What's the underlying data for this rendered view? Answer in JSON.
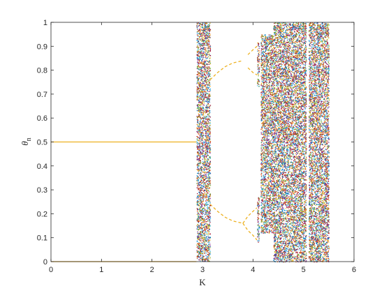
{
  "chart_data": {
    "type": "scatter",
    "xlabel": "K",
    "ylabel": "θ",
    "ylabel_subscript": "n",
    "xlim": [
      0,
      6
    ],
    "ylim": [
      0,
      1
    ],
    "xticks": [
      "0",
      "1",
      "2",
      "3",
      "4",
      "5",
      "6"
    ],
    "yticks": [
      "0",
      "0.1",
      "0.2",
      "0.3",
      "0.4",
      "0.5",
      "0.6",
      "0.7",
      "0.8",
      "0.9",
      "1"
    ],
    "grid": false,
    "box": true,
    "point_colors": [
      "#0072bd",
      "#d95319",
      "#edb120",
      "#7e2f8e",
      "#77ac30",
      "#4dbeee",
      "#a2142f"
    ],
    "fixed_point_color": "#edb120",
    "series": [
      {
        "kind": "fixed-line",
        "x_range": [
          0,
          2.88
        ],
        "y": 0.5
      },
      {
        "kind": "fixed-line",
        "x_range": [
          0,
          2.88
        ],
        "y": 0.0
      },
      {
        "kind": "branch",
        "x": [
          3.15,
          3.3,
          3.45,
          3.6,
          3.8
        ],
        "y": [
          0.76,
          0.79,
          0.815,
          0.83,
          0.84
        ]
      },
      {
        "kind": "branch",
        "x": [
          3.15,
          3.3,
          3.45,
          3.6,
          3.8
        ],
        "y": [
          0.24,
          0.21,
          0.185,
          0.17,
          0.16
        ]
      },
      {
        "kind": "branch",
        "x": [
          3.8,
          3.9,
          4.0,
          4.08
        ],
        "y": [
          0.16,
          0.19,
          0.21,
          0.225
        ]
      },
      {
        "kind": "branch",
        "x": [
          3.8,
          3.9,
          4.0,
          4.08
        ],
        "y": [
          0.16,
          0.13,
          0.11,
          0.09
        ]
      },
      {
        "kind": "branch",
        "x": [
          3.9,
          4.0,
          4.08
        ],
        "y": [
          0.865,
          0.885,
          0.9
        ]
      },
      {
        "kind": "branch",
        "x": [
          3.9,
          4.0,
          4.08
        ],
        "y": [
          0.81,
          0.79,
          0.78
        ]
      }
    ],
    "chaotic_bands": [
      {
        "x_range": [
          2.88,
          3.15
        ],
        "y_range": [
          0,
          1
        ]
      },
      {
        "x_range": [
          4.08,
          4.12
        ],
        "y_range": [
          0.08,
          0.27
        ]
      },
      {
        "x_range": [
          4.08,
          4.12
        ],
        "y_range": [
          0.73,
          0.92
        ]
      },
      {
        "x_range": [
          4.15,
          4.4
        ],
        "y_range": [
          0.12,
          0.95
        ]
      },
      {
        "x_range": [
          4.4,
          5.05
        ],
        "y_range": [
          0,
          1
        ]
      },
      {
        "x_range": [
          5.1,
          5.15
        ],
        "y_range": [
          0,
          1
        ]
      },
      {
        "x_range": [
          5.15,
          5.5
        ],
        "y_range": [
          0,
          1
        ]
      }
    ]
  }
}
